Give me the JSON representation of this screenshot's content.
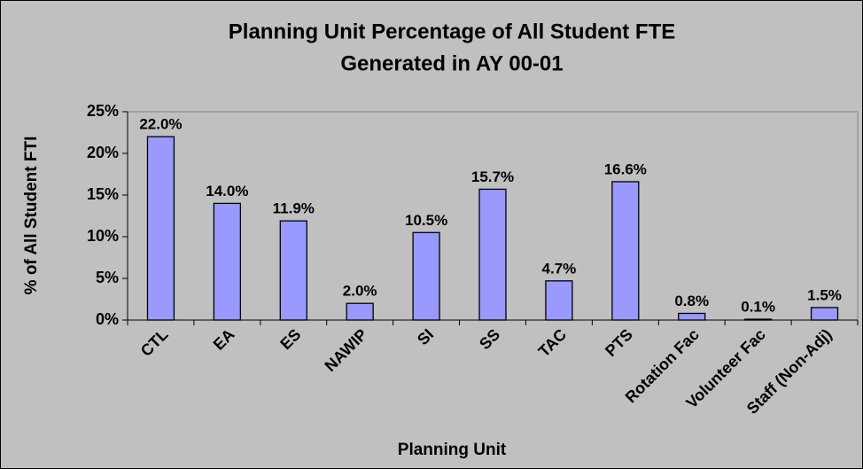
{
  "chart_data": {
    "type": "bar",
    "title": [
      "Planning Unit Percentage of All Student FTE",
      "Generated in AY 00-01"
    ],
    "x_label": "Planning Unit",
    "y_label": "% of All Student FTI",
    "categories": [
      "CTL",
      "EA",
      "ES",
      "NAWIP",
      "SI",
      "SS",
      "TAC",
      "PTS",
      "Rotation Fac",
      "Volunteer Fac",
      "Staff (Non-Adj)"
    ],
    "values": [
      22.0,
      14.0,
      11.9,
      2.0,
      10.5,
      15.7,
      4.7,
      16.6,
      0.8,
      0.1,
      1.5
    ],
    "value_labels": [
      "22.0%",
      "14.0%",
      "11.9%",
      "2.0%",
      "10.5%",
      "15.7%",
      "4.7%",
      "16.6%",
      "0.8%",
      "0.1%",
      "1.5%"
    ],
    "color": "#9999ff",
    "ylim": [
      0,
      25
    ],
    "yticks": [
      {
        "value": 0,
        "label": "0%"
      },
      {
        "value": 5,
        "label": "5%"
      },
      {
        "value": 10,
        "label": "10%"
      },
      {
        "value": 15,
        "label": "15%"
      },
      {
        "value": 20,
        "label": "20%"
      },
      {
        "value": 25,
        "label": "25%"
      }
    ],
    "grid": false
  }
}
